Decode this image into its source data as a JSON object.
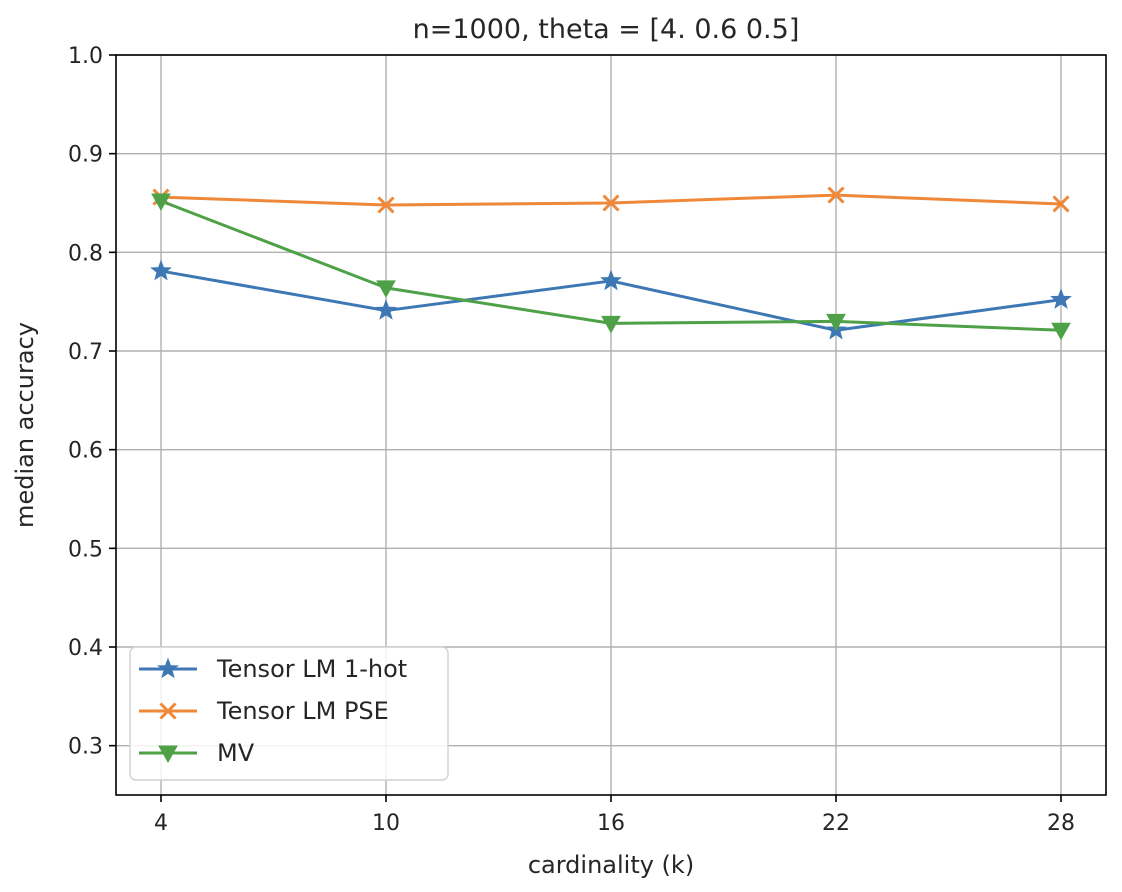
{
  "chart_data": {
    "type": "line",
    "title": "n=1000, theta = [4.  0.6 0.5]",
    "xlabel": "cardinality (k)",
    "ylabel": "median accuracy",
    "x": [
      4,
      10,
      16,
      22,
      28
    ],
    "xlim": [
      2.8,
      29.2
    ],
    "ylim": [
      0.25,
      1.0
    ],
    "xticks": [
      "4",
      "10",
      "16",
      "22",
      "28"
    ],
    "yticks": [
      "0.3",
      "0.4",
      "0.5",
      "0.6",
      "0.7",
      "0.8",
      "0.9",
      "1.0"
    ],
    "grid": true,
    "legend_position": "lower-left",
    "series": [
      {
        "name": "Tensor LM 1-hot",
        "color": "#3d78b4",
        "marker": "star",
        "values": [
          0.781,
          0.741,
          0.771,
          0.721,
          0.752
        ]
      },
      {
        "name": "Tensor LM PSE",
        "color": "#f0883a",
        "marker": "x",
        "values": [
          0.856,
          0.848,
          0.85,
          0.858,
          0.849
        ]
      },
      {
        "name": "MV",
        "color": "#4ea147",
        "marker": "triangle-down",
        "values": [
          0.852,
          0.764,
          0.728,
          0.73,
          0.721
        ]
      }
    ]
  }
}
